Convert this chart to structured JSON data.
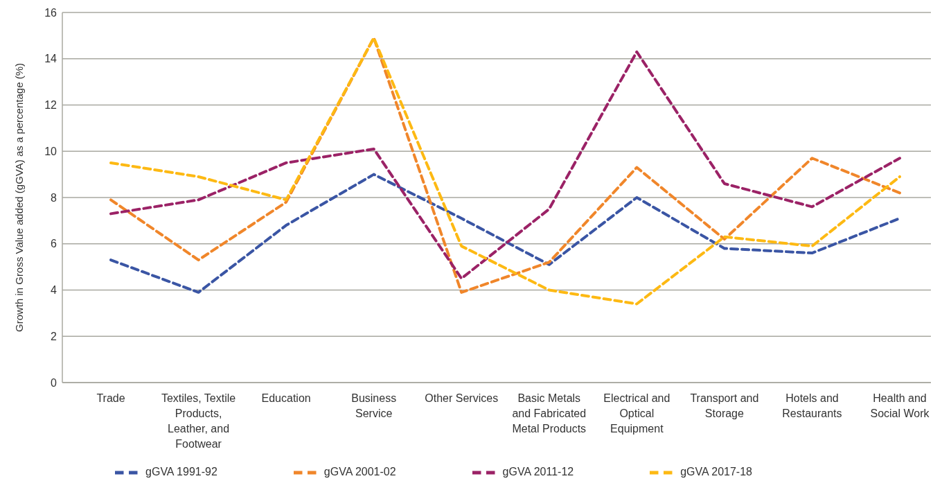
{
  "chart_data": {
    "type": "line",
    "ylabel": "Growth in Gross Value added (gGVA) as a percentage (%)",
    "categories": [
      "Trade",
      "Textiles, Textile Products, Leather, and Footwear",
      "Education",
      "Business Service",
      "Other Services",
      "Basic Metals and Fabricated Metal Products",
      "Electrical and Optical Equipment",
      "Transport and Storage",
      "Hotels and Restaurants",
      "Health and Social Work"
    ],
    "series": [
      {
        "name": "gGVA 1991-92",
        "color": "#3a55a4",
        "values": [
          5.3,
          3.9,
          6.8,
          9.0,
          7.1,
          5.1,
          8.0,
          5.8,
          5.6,
          7.1
        ]
      },
      {
        "name": "gGVA 2001-02",
        "color": "#f0862a",
        "values": [
          7.9,
          5.3,
          7.8,
          14.9,
          3.9,
          5.2,
          9.3,
          6.2,
          9.7,
          8.2
        ]
      },
      {
        "name": "gGVA 2011-12",
        "color": "#9b2266",
        "values": [
          7.3,
          7.9,
          9.5,
          10.1,
          4.5,
          7.5,
          14.3,
          8.6,
          7.6,
          9.7
        ]
      },
      {
        "name": "gGVA 2017-18",
        "color": "#fdb913",
        "values": [
          9.5,
          8.9,
          7.9,
          14.9,
          5.9,
          4.0,
          3.4,
          6.3,
          5.9,
          8.9
        ]
      }
    ],
    "ylim": [
      0,
      16
    ],
    "yticks": [
      0,
      2,
      4,
      6,
      8,
      10,
      12,
      14,
      16
    ],
    "grid": "y",
    "legend": "bottom",
    "marker": "none",
    "line_style": "dashed"
  }
}
